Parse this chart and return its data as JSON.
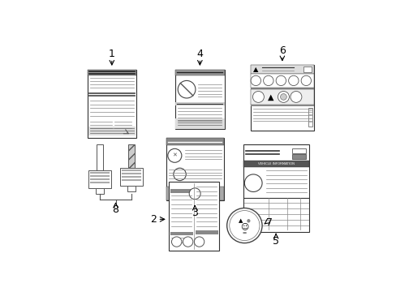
{
  "background_color": "#ffffff",
  "label_fontsize": 9,
  "items_color": "#333333",
  "line_color": "#888888",
  "dark_color": "#555555",
  "gray_fill": "#bbbbbb",
  "light_gray": "#dddddd"
}
